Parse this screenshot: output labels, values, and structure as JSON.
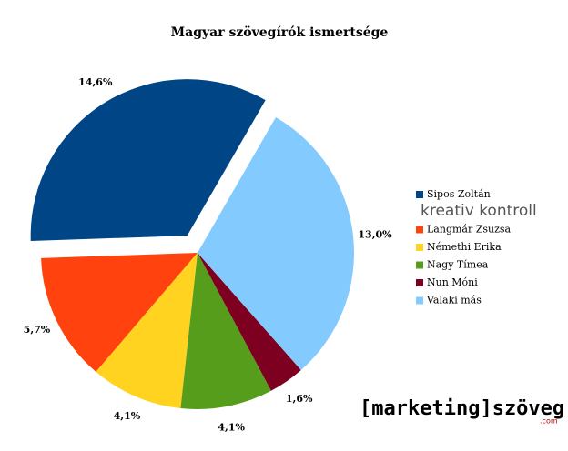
{
  "chart_data": {
    "type": "pie",
    "title": "Magyar szövegírók ismertsége",
    "categories": [
      "Sipos Zoltán",
      "Langmár Zsuzsa",
      "Némethi Erika",
      "Nagy Tímea",
      "Nun Móni",
      "Valaki más"
    ],
    "values": [
      14.6,
      5.7,
      4.1,
      4.1,
      1.6,
      13.0
    ],
    "value_labels": [
      "14,6%",
      "5,7%",
      "4,1%",
      "4,1%",
      "1,6%",
      "13,0%"
    ],
    "colors": [
      "#004586",
      "#ff420e",
      "#ffd320",
      "#579d1c",
      "#7e0021",
      "#83caff"
    ],
    "legend": "right",
    "legend_logo": "kreativ kontroll",
    "watermark": "[marketing]szöveg",
    "watermark_sub": ".com"
  }
}
